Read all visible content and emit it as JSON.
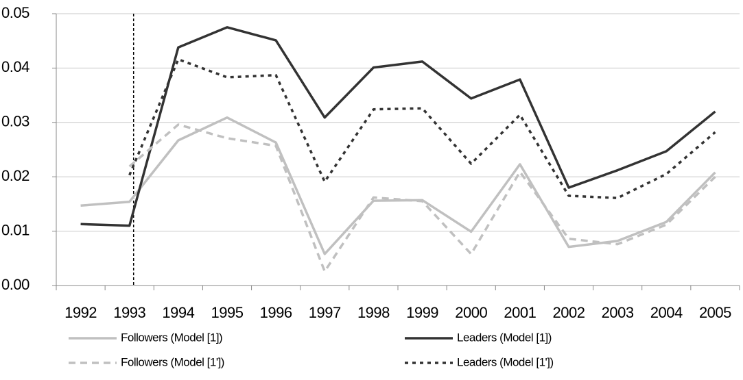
{
  "chart_data": {
    "type": "line",
    "categories": [
      "1992",
      "1993",
      "1994",
      "1995",
      "1996",
      "1997",
      "1998",
      "1999",
      "2000",
      "2001",
      "2002",
      "2003",
      "2004",
      "2005"
    ],
    "series": [
      {
        "name": "Followers (Model [1])",
        "color": "#c0c0c0",
        "dash": "solid",
        "values": [
          0.0147,
          0.0154,
          0.0267,
          0.0309,
          0.0263,
          0.0058,
          0.0156,
          0.0157,
          0.0099,
          0.0223,
          0.0071,
          0.0082,
          0.0117,
          0.0208
        ]
      },
      {
        "name": "Leaders (Model [1])",
        "color": "#333333",
        "dash": "solid",
        "values": [
          0.0113,
          0.011,
          0.0438,
          0.0475,
          0.0451,
          0.0309,
          0.0401,
          0.0412,
          0.0344,
          0.0379,
          0.018,
          0.0212,
          0.0247,
          0.032
        ]
      },
      {
        "name": "Followers (Model [1'])",
        "color": "#c0c0c0",
        "dash": "dashed",
        "values": [
          null,
          0.0219,
          0.0296,
          0.0271,
          0.0257,
          0.0026,
          0.0162,
          0.0155,
          0.0058,
          0.0209,
          0.0086,
          0.0076,
          0.0112,
          0.02
        ]
      },
      {
        "name": "Leaders (Model [1'])",
        "color": "#333333",
        "dash": "dotted",
        "values": [
          null,
          0.0203,
          0.0416,
          0.0383,
          0.0387,
          0.0191,
          0.0324,
          0.0326,
          0.0224,
          0.0314,
          0.0165,
          0.0161,
          0.0205,
          0.0282
        ]
      }
    ],
    "ylim": [
      0,
      0.05
    ],
    "yticks": [
      {
        "value": 0,
        "label": "0.00"
      },
      0.01,
      0.02,
      0.03,
      0.04,
      0.05
    ],
    "grid": true,
    "vline": "1993",
    "legend": "bottom"
  }
}
